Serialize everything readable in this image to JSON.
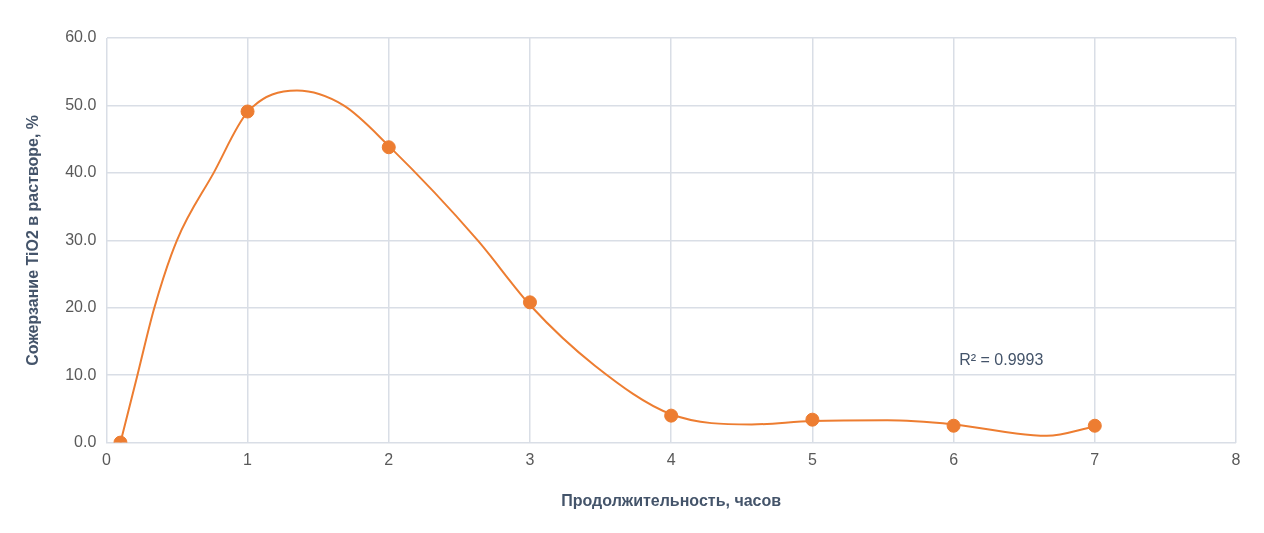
{
  "chart_data": {
    "type": "scatter",
    "xlabel": "Продолжительность, часов",
    "ylabel": "Сожерзание TiO2 в растворе, %",
    "xlim": [
      0,
      8
    ],
    "xticks": [
      0,
      1,
      2,
      3,
      4,
      5,
      6,
      7,
      8
    ],
    "ylim": [
      0,
      60
    ],
    "yticks": [
      {
        "value": 0,
        "label": "0.0"
      },
      {
        "value": 10,
        "label": "10.0"
      },
      {
        "value": 20,
        "label": "20.0"
      },
      {
        "value": 30,
        "label": "30.0"
      },
      {
        "value": 40,
        "label": "40.0"
      },
      {
        "value": 50,
        "label": "50.0"
      },
      {
        "value": 60,
        "label": "60.0"
      }
    ],
    "grid": true,
    "legend": false,
    "marker": "circle",
    "annotations": [
      "R² = 0.9993"
    ],
    "series": [
      {
        "color": "#ed7d31",
        "x": [
          0.1,
          1,
          2,
          3,
          4,
          5,
          6,
          7
        ],
        "values": [
          0,
          49.1,
          43.8,
          20.8,
          4.0,
          3.4,
          2.5,
          2.5
        ]
      },
      {
        "type": "line",
        "color": "#ed7d31",
        "marker": "none",
        "line_style": "solid",
        "x": [
          0.1,
          0.22,
          0.34,
          0.5,
          0.76,
          1,
          1.35,
          1.68,
          2,
          2.63,
          3,
          3.46,
          4,
          4.57,
          5,
          5.53,
          6,
          6.66,
          7
        ],
        "values": [
          0,
          10,
          20,
          30,
          40,
          49,
          52.2,
          50,
          44,
          30,
          20.4,
          11.4,
          4.2,
          2.7,
          3.2,
          3.3,
          2.7,
          1.0,
          2.4
        ]
      }
    ]
  }
}
